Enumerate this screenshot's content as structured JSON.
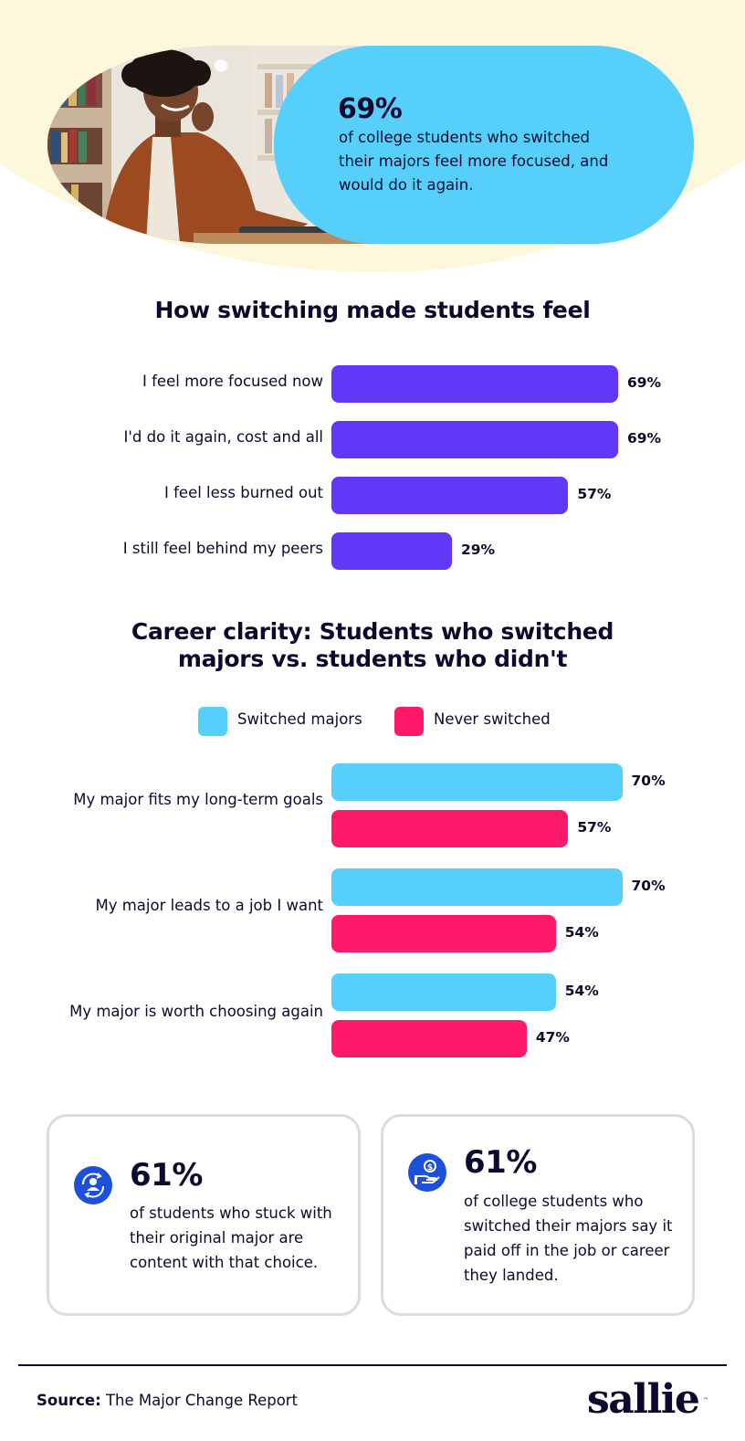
{
  "colors": {
    "hero_background": "#fdf7dc",
    "hero_pill": "#56d0fa",
    "purple_bar": "#6137f8",
    "switched": "#56d0fa",
    "never_switched": "#fd1a6a",
    "navy": "#0b0a2e",
    "icon_blue": "#1c4fdc"
  },
  "hero": {
    "stat": "69%",
    "text": "of college students who switched their majors feel more focused, and would do it again.",
    "photo": "student-smiling-at-laptop-in-library-photo"
  },
  "chart_data": [
    {
      "type": "bar",
      "orientation": "horizontal",
      "title": "How switching made students feel",
      "categories": [
        "I feel more focused now",
        "I'd do it again, cost and all",
        "I feel less burned out",
        "I still feel behind my peers"
      ],
      "values": [
        69,
        69,
        57,
        29
      ],
      "value_labels": [
        "69%",
        "69%",
        "57%",
        "29%"
      ],
      "unit": "%",
      "grid": false
    },
    {
      "type": "bar",
      "orientation": "horizontal",
      "title": "Career clarity: Students who switched majors vs. students who didn't",
      "categories": [
        "My major fits my long-term goals",
        "My major leads to a job I want",
        "My major is worth choosing again"
      ],
      "series": [
        {
          "name": "Switched majors",
          "values": [
            70,
            70,
            54
          ],
          "value_labels": [
            "70%",
            "70%",
            "54%"
          ]
        },
        {
          "name": "Never switched",
          "values": [
            57,
            54,
            47
          ],
          "value_labels": [
            "57%",
            "54%",
            "47%"
          ]
        }
      ],
      "unit": "%",
      "legend": "top",
      "grid": false
    }
  ],
  "cards": [
    {
      "icon": "person-cycle-icon",
      "stat": "61%",
      "text": "of students who stuck with their original major are content with that choice."
    },
    {
      "icon": "hand-coin-icon",
      "stat": "61%",
      "text": "of college students who switched their majors say it paid off in the job or career they landed."
    }
  ],
  "footer": {
    "source_label": "Source:",
    "source_text": "The Major Change Report",
    "logo_text": "sallie",
    "logo_tm": "™"
  }
}
